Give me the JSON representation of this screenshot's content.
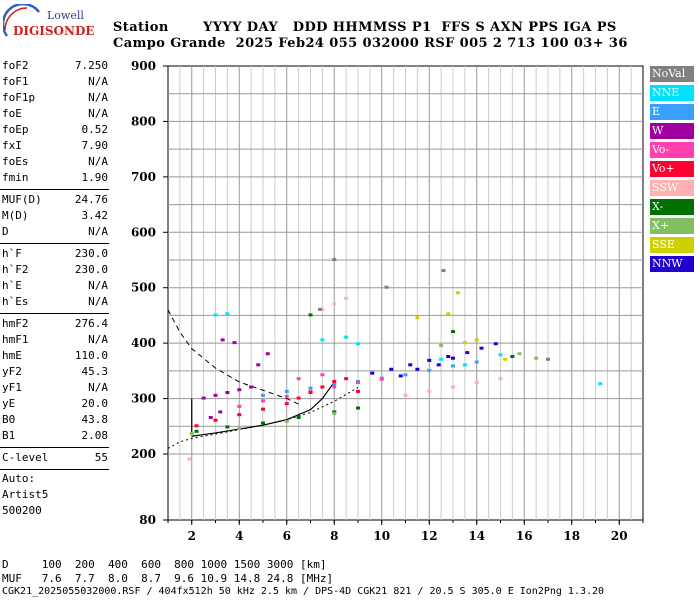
{
  "logo": {
    "line1": "Lowell",
    "line2": "DIGISONDE"
  },
  "header": {
    "row1": "Station       YYYY DAY   DDD HHMMSS P1  FFS S AXN PPS IGA PS",
    "row2": "Campo Grande  2025 Feb24 055 032000 RSF 005 2 713 100 03+ 36"
  },
  "params": {
    "group1": [
      {
        "k": "foF2",
        "v": "7.250"
      },
      {
        "k": "foF1",
        "v": "N/A"
      },
      {
        "k": "foF1p",
        "v": "N/A"
      },
      {
        "k": "foE",
        "v": "N/A"
      },
      {
        "k": "foEp",
        "v": "0.52"
      },
      {
        "k": "fxI",
        "v": "7.90"
      },
      {
        "k": "foEs",
        "v": "N/A"
      },
      {
        "k": "fmin",
        "v": "1.90"
      }
    ],
    "group2": [
      {
        "k": "MUF(D)",
        "v": "24.76"
      },
      {
        "k": "M(D)",
        "v": "3.42"
      },
      {
        "k": "D",
        "v": "N/A"
      }
    ],
    "group3": [
      {
        "k": "h`F",
        "v": "230.0"
      },
      {
        "k": "h`F2",
        "v": "230.0"
      },
      {
        "k": "h`E",
        "v": "N/A"
      },
      {
        "k": "h`Es",
        "v": "N/A"
      }
    ],
    "group4": [
      {
        "k": "hmF2",
        "v": "276.4"
      },
      {
        "k": "hmF1",
        "v": "N/A"
      },
      {
        "k": "hmE",
        "v": "110.0"
      },
      {
        "k": "yF2",
        "v": "45.3"
      },
      {
        "k": "yF1",
        "v": "N/A"
      },
      {
        "k": "yE",
        "v": "20.0"
      },
      {
        "k": "B0",
        "v": "43.8"
      },
      {
        "k": "B1",
        "v": "2.08"
      }
    ],
    "clevel": {
      "k": "C-level",
      "v": "55"
    },
    "auto": [
      "Auto:",
      "Artist5",
      "500200"
    ]
  },
  "legend": [
    {
      "label": "NoVal",
      "bg": "#808080",
      "fg": "#ffffff"
    },
    {
      "label": "NNE",
      "bg": "#00e0ff",
      "fg": "#ffffff"
    },
    {
      "label": "E",
      "bg": "#3aa0ff",
      "fg": "#ffffff"
    },
    {
      "label": "W",
      "bg": "#a000a0",
      "fg": "#ffffff"
    },
    {
      "label": "Vo-",
      "bg": "#ff40b0",
      "fg": "#ffffff"
    },
    {
      "label": "Vo+",
      "bg": "#ff0030",
      "fg": "#ffffff"
    },
    {
      "label": "SSW",
      "bg": "#ffb0b0",
      "fg": "#ffffff"
    },
    {
      "label": "X-",
      "bg": "#007000",
      "fg": "#ffffff"
    },
    {
      "label": "X+",
      "bg": "#80c060",
      "fg": "#ffffff"
    },
    {
      "label": "SSE",
      "bg": "#d0d000",
      "fg": "#ffffff"
    },
    {
      "label": "NNW",
      "bg": "#2000d0",
      "fg": "#ffffff"
    }
  ],
  "bottom": {
    "line1": "D     100  200  400  600  800 1000 1500 3000 [km]",
    "line2": "MUF   7.6  7.7  8.0  8.7  9.6 10.9 14.8 24.8 [MHz]",
    "line3": "CGK21_2025055032000.RSF / 404fx512h 50 kHz 2.5 km / DPS-4D CGK21 821 / 20.5 S 305.0 E Ion2Png 1.3.20"
  },
  "chart_data": {
    "type": "scatter",
    "xlabel": "",
    "ylabel": "",
    "xlim": [
      1,
      21
    ],
    "ylim": [
      80,
      900
    ],
    "x_ticks": [
      2,
      4,
      6,
      8,
      10,
      12,
      14,
      16,
      18,
      20
    ],
    "y_ticks": [
      80,
      200,
      300,
      400,
      500,
      600,
      700,
      800,
      900
    ],
    "grid": true,
    "legend_position": "right",
    "series": [
      {
        "name": "NNW",
        "color": "#2000d0",
        "points": [
          [
            9.6,
            345
          ],
          [
            10.4,
            352
          ],
          [
            11.2,
            360
          ],
          [
            12.0,
            368
          ],
          [
            12.8,
            375
          ],
          [
            13.6,
            382
          ],
          [
            14.2,
            390
          ],
          [
            14.8,
            398
          ],
          [
            13.0,
            372
          ],
          [
            11.5,
            352
          ],
          [
            10.8,
            340
          ],
          [
            12.4,
            360
          ]
        ]
      },
      {
        "name": "E",
        "color": "#3aa0ff",
        "points": [
          [
            5.0,
            305
          ],
          [
            6.0,
            312
          ],
          [
            7.0,
            318
          ],
          [
            8.0,
            325
          ],
          [
            9.0,
            330
          ],
          [
            10.0,
            336
          ],
          [
            11.0,
            342
          ],
          [
            12.0,
            350
          ],
          [
            13.0,
            358
          ],
          [
            14.0,
            365
          ]
        ]
      },
      {
        "name": "NNE",
        "color": "#00e0ff",
        "points": [
          [
            3.0,
            450
          ],
          [
            3.5,
            452
          ],
          [
            7.5,
            405
          ],
          [
            8.5,
            410
          ],
          [
            9.0,
            398
          ],
          [
            12.5,
            370
          ],
          [
            13.5,
            360
          ],
          [
            15.0,
            378
          ],
          [
            19.2,
            326
          ]
        ]
      },
      {
        "name": "W",
        "color": "#a000a0",
        "points": [
          [
            2.5,
            300
          ],
          [
            3.0,
            305
          ],
          [
            3.5,
            310
          ],
          [
            4.0,
            315
          ],
          [
            4.5,
            320
          ],
          [
            3.3,
            405
          ],
          [
            3.8,
            400
          ],
          [
            2.8,
            265
          ],
          [
            3.2,
            275
          ],
          [
            4.8,
            360
          ],
          [
            5.2,
            380
          ]
        ]
      },
      {
        "name": "Vo-",
        "color": "#ff40b0",
        "points": [
          [
            4.0,
            285
          ],
          [
            5.0,
            295
          ],
          [
            6.0,
            303
          ],
          [
            7.0,
            312
          ],
          [
            8.0,
            320
          ],
          [
            9.0,
            328
          ],
          [
            10.0,
            334
          ],
          [
            6.5,
            335
          ],
          [
            7.5,
            342
          ]
        ]
      },
      {
        "name": "Vo+",
        "color": "#ff0030",
        "points": [
          [
            2.2,
            250
          ],
          [
            3.0,
            260
          ],
          [
            4.0,
            270
          ],
          [
            5.0,
            280
          ],
          [
            6.0,
            290
          ],
          [
            6.5,
            300
          ],
          [
            7.0,
            310
          ],
          [
            7.5,
            320
          ],
          [
            8.0,
            330
          ],
          [
            8.5,
            335
          ],
          [
            9.0,
            312
          ]
        ]
      },
      {
        "name": "SSW",
        "color": "#ffb0b0",
        "points": [
          [
            7.0,
            450
          ],
          [
            7.5,
            460
          ],
          [
            8.0,
            470
          ],
          [
            8.5,
            480
          ],
          [
            11.0,
            305
          ],
          [
            12.0,
            312
          ],
          [
            13.0,
            320
          ],
          [
            14.0,
            328
          ],
          [
            15.0,
            335
          ],
          [
            1.9,
            190
          ]
        ]
      },
      {
        "name": "X-",
        "color": "#007000",
        "points": [
          [
            2.2,
            240
          ],
          [
            3.5,
            248
          ],
          [
            5.0,
            255
          ],
          [
            6.5,
            265
          ],
          [
            8.0,
            275
          ],
          [
            9.0,
            282
          ],
          [
            15.5,
            375
          ],
          [
            7.0,
            450
          ],
          [
            13.0,
            420
          ]
        ]
      },
      {
        "name": "X+",
        "color": "#80c060",
        "points": [
          [
            2.0,
            236
          ],
          [
            4.0,
            245
          ],
          [
            6.0,
            258
          ],
          [
            8.0,
            272
          ],
          [
            15.8,
            380
          ],
          [
            16.5,
            372
          ],
          [
            12.5,
            395
          ]
        ]
      },
      {
        "name": "SSE",
        "color": "#d0d000",
        "points": [
          [
            13.5,
            400
          ],
          [
            14.0,
            405
          ],
          [
            12.8,
            452
          ],
          [
            13.2,
            490
          ],
          [
            11.5,
            445
          ],
          [
            15.2,
            370
          ]
        ]
      },
      {
        "name": "NoVal",
        "color": "#808080",
        "points": [
          [
            7.4,
            460
          ],
          [
            8.0,
            550
          ],
          [
            10.2,
            500
          ],
          [
            12.6,
            530
          ],
          [
            17.0,
            370
          ]
        ]
      }
    ]
  }
}
